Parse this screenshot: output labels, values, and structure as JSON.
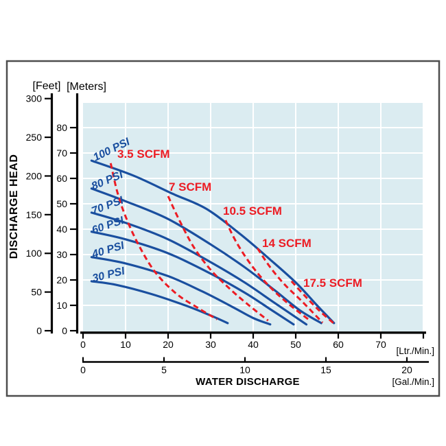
{
  "labels": {
    "feet_unit": "[Feet]",
    "meters_unit": "[Meters]",
    "ltr_unit": "[Ltr./Min.]",
    "gal_unit": "[Gal./Min.]",
    "y_title": "DISCHARGE HEAD",
    "x_title": "WATER DISCHARGE"
  },
  "colors": {
    "curve_blue": "#1a4f9f",
    "scfm_red": "#ec1c24",
    "plot_bg": "#dbecf1",
    "grid": "#ffffff",
    "axis": "#000000",
    "frame_border": "#4d4d4d",
    "page_bg": "#ffffff"
  },
  "chart_data": {
    "type": "line",
    "title": "",
    "xlabel": "WATER DISCHARGE",
    "ylabel": "DISCHARGE HEAD",
    "grid": true,
    "x_axis": {
      "primary_units": "Ltr./Min.",
      "primary_ticks": [
        0,
        10,
        20,
        30,
        40,
        50,
        60,
        70
      ],
      "primary_range": [
        0,
        80
      ],
      "secondary_units": "Gal./Min.",
      "secondary_ticks": [
        0,
        5,
        10,
        15,
        20
      ],
      "secondary_range": [
        0,
        21
      ]
    },
    "y_axis": {
      "primary_units": "Feet",
      "primary_ticks": [
        0,
        50,
        100,
        150,
        200,
        250,
        300
      ],
      "primary_range": [
        0,
        300
      ],
      "secondary_units": "Meters",
      "secondary_ticks": [
        0,
        10,
        20,
        30,
        40,
        50,
        60,
        70,
        80
      ],
      "secondary_range": [
        0,
        90
      ]
    },
    "series": [
      {
        "name": "100 PSI",
        "style": "solid",
        "x_units": "Ltr./Min.",
        "y_units": "Meters",
        "points": [
          [
            2,
            67
          ],
          [
            12,
            61
          ],
          [
            21,
            54
          ],
          [
            29,
            48
          ],
          [
            37,
            38
          ],
          [
            44,
            28
          ],
          [
            50,
            19
          ],
          [
            55,
            10
          ],
          [
            59,
            3
          ]
        ]
      },
      {
        "name": "80 PSI",
        "style": "solid",
        "x_units": "Ltr./Min.",
        "y_units": "Meters",
        "points": [
          [
            2,
            56
          ],
          [
            10,
            51
          ],
          [
            20,
            44
          ],
          [
            30,
            34
          ],
          [
            38,
            25
          ],
          [
            45,
            16
          ],
          [
            51,
            8
          ],
          [
            56,
            3
          ]
        ]
      },
      {
        "name": "70 PSI",
        "style": "solid",
        "x_units": "Ltr./Min.",
        "y_units": "Meters",
        "points": [
          [
            2,
            46.5
          ],
          [
            10,
            42.5
          ],
          [
            20,
            36
          ],
          [
            30,
            27
          ],
          [
            38,
            19
          ],
          [
            45,
            11
          ],
          [
            52.5,
            2.5
          ]
        ]
      },
      {
        "name": "60 PSI",
        "style": "solid",
        "x_units": "Ltr./Min.",
        "y_units": "Meters",
        "points": [
          [
            2,
            39
          ],
          [
            10,
            36
          ],
          [
            20,
            30.5
          ],
          [
            30,
            22.5
          ],
          [
            38,
            15
          ],
          [
            44,
            8.5
          ],
          [
            49.5,
            2.5
          ]
        ]
      },
      {
        "name": "40 PSI",
        "style": "solid",
        "x_units": "Ltr./Min.",
        "y_units": "Meters",
        "points": [
          [
            2,
            29
          ],
          [
            10,
            26.5
          ],
          [
            20,
            21.5
          ],
          [
            28,
            15.5
          ],
          [
            35,
            9.5
          ],
          [
            40,
            5
          ],
          [
            44,
            2.5
          ]
        ]
      },
      {
        "name": "30 PSI",
        "style": "solid",
        "x_units": "Ltr./Min.",
        "y_units": "Meters",
        "points": [
          [
            2,
            19.5
          ],
          [
            8,
            18
          ],
          [
            16,
            14.5
          ],
          [
            24,
            10
          ],
          [
            30,
            6
          ],
          [
            34,
            3
          ]
        ]
      }
    ],
    "air_consumption_lines": [
      {
        "name": "3.5 SCFM",
        "style": "dashed",
        "x_units": "Ltr./Min.",
        "y_units": "Meters",
        "points": [
          [
            6.5,
            66
          ],
          [
            8,
            55
          ],
          [
            10,
            45
          ],
          [
            13,
            34
          ],
          [
            17,
            23
          ],
          [
            22,
            14.5
          ],
          [
            27,
            9
          ],
          [
            31.5,
            4.5
          ]
        ]
      },
      {
        "name": "7 SCFM",
        "style": "dashed",
        "x_units": "Ltr./Min.",
        "y_units": "Meters",
        "points": [
          [
            20,
            53
          ],
          [
            22.5,
            44
          ],
          [
            26,
            33
          ],
          [
            30,
            24
          ],
          [
            34.5,
            16.5
          ],
          [
            39,
            10
          ],
          [
            43.5,
            4
          ]
        ]
      },
      {
        "name": "10.5 SCFM",
        "style": "dashed",
        "x_units": "Ltr./Min.",
        "y_units": "Meters",
        "points": [
          [
            33.5,
            43.5
          ],
          [
            36,
            35
          ],
          [
            39.5,
            26
          ],
          [
            43.5,
            18
          ],
          [
            48,
            11
          ],
          [
            53.5,
            3.8
          ]
        ]
      },
      {
        "name": "14 SCFM",
        "style": "dashed",
        "x_units": "Ltr./Min.",
        "y_units": "Meters",
        "points": [
          [
            41,
            32.5
          ],
          [
            44,
            25
          ],
          [
            47.5,
            18
          ],
          [
            51.5,
            11.5
          ],
          [
            56.3,
            3.2
          ]
        ]
      },
      {
        "name": "17.5 SCFM",
        "style": "dashed",
        "x_units": "Ltr./Min.",
        "y_units": "Meters",
        "points": [
          [
            49,
            19.5
          ],
          [
            52,
            14
          ],
          [
            55.5,
            8
          ],
          [
            59,
            2.8
          ]
        ]
      }
    ]
  }
}
